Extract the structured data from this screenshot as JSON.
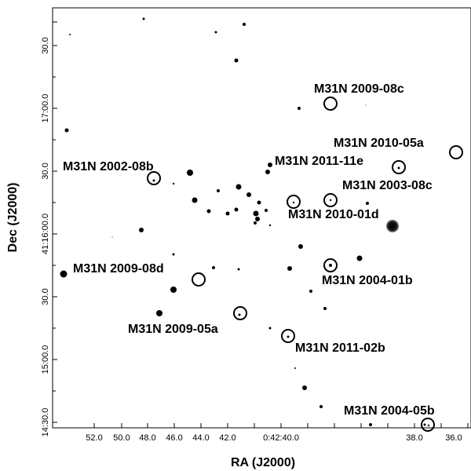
{
  "axes": {
    "x_title": "RA (J2000)",
    "y_title": "Dec (J2000)",
    "x_ticks": [
      "52.0",
      "50.0",
      "48.0",
      "46.0",
      "44.0",
      "42.0",
      "0:42:40.0",
      "38.0",
      "36.0"
    ],
    "y_ticks": [
      "30.0",
      "17:00.0",
      "30.0",
      "41:16:00.0",
      "30.0",
      "15:00.0",
      "14:30.0"
    ]
  },
  "novae": [
    "M31N 2009-08c",
    "M31N 2010-05a",
    "M31N 2002-08b",
    "M31N 2011-11e",
    "M31N 2003-08c",
    "M31N 2010-01d",
    "M31N 2009-08d",
    "M31N 2004-01b",
    "M31N 2009-05a",
    "M31N 2011-02b",
    "M31N 2004-05b"
  ]
}
